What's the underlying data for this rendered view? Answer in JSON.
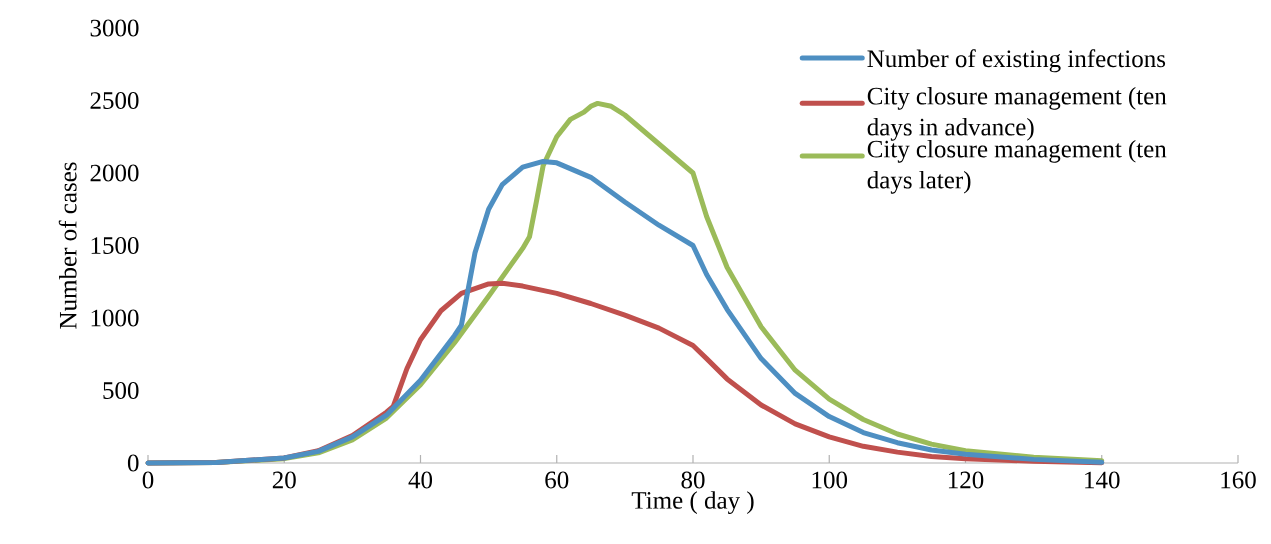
{
  "chart_data": {
    "type": "line",
    "xlabel": "Time ( day )",
    "ylabel": "Number of cases",
    "xlim": [
      0,
      160
    ],
    "xticks": [
      0,
      20,
      40,
      60,
      80,
      100,
      120,
      140,
      160
    ],
    "ylim": [
      0,
      3000
    ],
    "yticks": [
      0,
      500,
      1000,
      1500,
      2000,
      2500,
      3000
    ],
    "grid": false,
    "legend": "top right",
    "marker": "none",
    "line_style": "solid",
    "series": [
      {
        "name": "Number of existing infections",
        "color": "#4e8fc2",
        "x": [
          0,
          10,
          20,
          25,
          30,
          35,
          40,
          45,
          46,
          47,
          48,
          50,
          52,
          55,
          58,
          60,
          65,
          70,
          75,
          80,
          82,
          85,
          90,
          95,
          100,
          105,
          110,
          115,
          120,
          130,
          140
        ],
        "values": [
          0,
          3,
          35,
          80,
          180,
          330,
          570,
          880,
          950,
          1200,
          1450,
          1750,
          1920,
          2040,
          2080,
          2070,
          1970,
          1800,
          1640,
          1500,
          1300,
          1060,
          720,
          480,
          320,
          210,
          140,
          90,
          60,
          25,
          5
        ]
      },
      {
        "name": "City closure management (ten days in advance)",
        "color": "#c0504d",
        "x": [
          0,
          10,
          20,
          25,
          30,
          35,
          36,
          38,
          40,
          43,
          46,
          50,
          52,
          55,
          60,
          65,
          70,
          75,
          80,
          82,
          85,
          90,
          95,
          100,
          105,
          110,
          115,
          120,
          130,
          140
        ],
        "values": [
          0,
          3,
          35,
          85,
          190,
          350,
          390,
          650,
          850,
          1050,
          1170,
          1235,
          1240,
          1220,
          1170,
          1100,
          1020,
          930,
          810,
          720,
          580,
          400,
          270,
          180,
          115,
          75,
          45,
          30,
          12,
          2
        ]
      },
      {
        "name": "City closure management (ten days later)",
        "color": "#9bbb59",
        "x": [
          0,
          10,
          20,
          25,
          30,
          35,
          40,
          45,
          50,
          55,
          56,
          57,
          58,
          60,
          62,
          64,
          65,
          66,
          68,
          70,
          75,
          80,
          82,
          85,
          90,
          95,
          100,
          105,
          110,
          115,
          120,
          130,
          140
        ],
        "values": [
          0,
          3,
          30,
          70,
          160,
          310,
          540,
          830,
          1150,
          1480,
          1560,
          1800,
          2050,
          2250,
          2370,
          2420,
          2460,
          2480,
          2460,
          2400,
          2200,
          2000,
          1700,
          1350,
          940,
          640,
          440,
          300,
          200,
          130,
          85,
          40,
          15
        ]
      }
    ]
  }
}
